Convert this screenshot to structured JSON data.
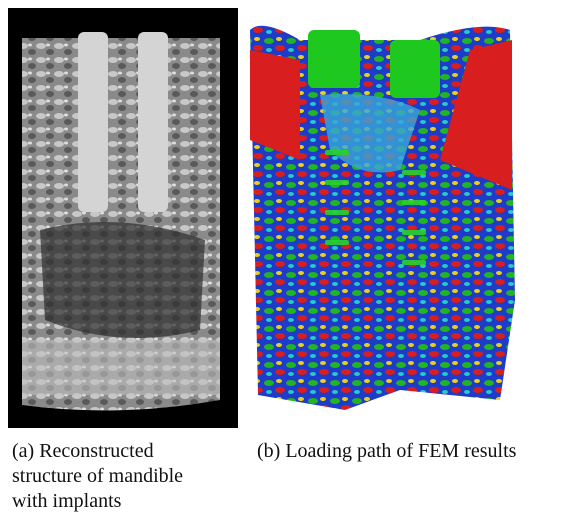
{
  "figure": {
    "panels": [
      {
        "caption_lines": [
          "(a) Reconstructed",
          "structure of mandible",
          "with implants"
        ]
      },
      {
        "caption_lines": [
          "(b) Loading path of FEM results"
        ]
      }
    ]
  }
}
